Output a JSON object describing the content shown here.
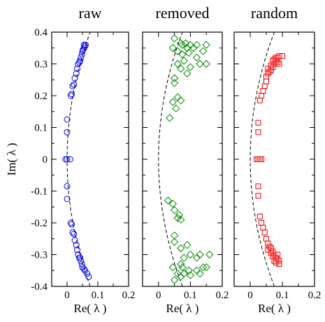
{
  "chart_data": [
    {
      "type": "scatter",
      "title": "raw",
      "xlabel": "Re( λ )",
      "ylabel": "Im( λ )",
      "xlim": [
        -0.05,
        0.2
      ],
      "ylim": [
        -0.4,
        0.4
      ],
      "xticks": [
        "0",
        "0.1",
        "0.2"
      ],
      "yticks": [
        "-0.4",
        "-0.3",
        "-0.2",
        "-0.1",
        "0",
        "0.1",
        "0.2",
        "0.3",
        "0.4"
      ],
      "marker": "circle",
      "color": "#0000ee",
      "reference_curve": {
        "style": "dashed",
        "color": "#000000",
        "x_at_zero": 0.0,
        "x_at_edge": 0.075
      },
      "points": [
        [
          -0.005,
          0.0
        ],
        [
          0.0,
          0.0
        ],
        [
          0.01,
          0.0
        ],
        [
          0.0,
          0.085
        ],
        [
          0.0,
          0.125
        ],
        [
          0.0,
          -0.085
        ],
        [
          0.0,
          -0.125
        ],
        [
          0.012,
          0.2
        ],
        [
          0.015,
          0.205
        ],
        [
          0.018,
          0.23
        ],
        [
          0.022,
          0.235
        ],
        [
          0.025,
          0.255
        ],
        [
          0.03,
          0.27
        ],
        [
          0.033,
          0.285
        ],
        [
          0.036,
          0.3
        ],
        [
          0.04,
          0.305
        ],
        [
          0.042,
          0.31
        ],
        [
          0.045,
          0.32
        ],
        [
          0.048,
          0.33
        ],
        [
          0.05,
          0.34
        ],
        [
          0.052,
          0.345
        ],
        [
          0.055,
          0.35
        ],
        [
          0.058,
          0.355
        ],
        [
          0.055,
          0.36
        ],
        [
          0.06,
          0.36
        ],
        [
          0.012,
          -0.2
        ],
        [
          0.015,
          -0.205
        ],
        [
          0.018,
          -0.23
        ],
        [
          0.022,
          -0.235
        ],
        [
          0.025,
          -0.255
        ],
        [
          0.03,
          -0.27
        ],
        [
          0.033,
          -0.285
        ],
        [
          0.036,
          -0.3
        ],
        [
          0.04,
          -0.31
        ],
        [
          0.042,
          -0.31
        ],
        [
          0.045,
          -0.32
        ],
        [
          0.048,
          -0.33
        ],
        [
          0.05,
          -0.34
        ],
        [
          0.055,
          -0.345
        ],
        [
          0.058,
          -0.35
        ],
        [
          0.065,
          -0.36
        ],
        [
          0.07,
          -0.37
        ]
      ]
    },
    {
      "type": "scatter",
      "title": "removed",
      "xlabel": "Re( λ )",
      "xlim": [
        -0.05,
        0.2
      ],
      "ylim": [
        -0.4,
        0.4
      ],
      "xticks": [
        "0",
        "0.1",
        "0.2"
      ],
      "marker": "diamond",
      "color": "#008800",
      "reference_curve": {
        "style": "dashed",
        "color": "#000000",
        "x_at_zero": 0.0,
        "x_at_edge": 0.075
      },
      "points": [
        [
          0.05,
          0.38
        ],
        [
          0.07,
          0.365
        ],
        [
          0.075,
          0.36
        ],
        [
          0.085,
          0.365
        ],
        [
          0.1,
          0.36
        ],
        [
          0.12,
          0.36
        ],
        [
          0.15,
          0.36
        ],
        [
          0.045,
          0.35
        ],
        [
          0.09,
          0.35
        ],
        [
          0.11,
          0.35
        ],
        [
          0.14,
          0.34
        ],
        [
          0.06,
          0.34
        ],
        [
          0.075,
          0.33
        ],
        [
          0.095,
          0.335
        ],
        [
          0.12,
          0.32
        ],
        [
          0.15,
          0.3
        ],
        [
          0.06,
          0.3
        ],
        [
          0.08,
          0.31
        ],
        [
          0.1,
          0.29
        ],
        [
          0.13,
          0.3
        ],
        [
          0.07,
          0.285
        ],
        [
          0.09,
          0.27
        ],
        [
          0.05,
          0.255
        ],
        [
          0.05,
          0.24
        ],
        [
          0.06,
          0.195
        ],
        [
          0.045,
          0.18
        ],
        [
          0.07,
          0.185
        ],
        [
          0.055,
          0.16
        ],
        [
          0.035,
          0.13
        ],
        [
          0.03,
          -0.13
        ],
        [
          0.045,
          -0.14
        ],
        [
          0.05,
          -0.16
        ],
        [
          0.065,
          -0.175
        ],
        [
          0.06,
          -0.185
        ],
        [
          0.07,
          -0.19
        ],
        [
          0.05,
          -0.24
        ],
        [
          0.05,
          -0.26
        ],
        [
          0.07,
          -0.28
        ],
        [
          0.09,
          -0.27
        ],
        [
          0.08,
          -0.31
        ],
        [
          0.1,
          -0.3
        ],
        [
          0.12,
          -0.31
        ],
        [
          0.07,
          -0.33
        ],
        [
          0.13,
          -0.3
        ],
        [
          0.16,
          -0.3
        ],
        [
          0.045,
          -0.34
        ],
        [
          0.075,
          -0.34
        ],
        [
          0.095,
          -0.35
        ],
        [
          0.12,
          -0.35
        ],
        [
          0.14,
          -0.34
        ],
        [
          0.15,
          -0.34
        ],
        [
          0.06,
          -0.36
        ],
        [
          0.08,
          -0.36
        ],
        [
          0.1,
          -0.365
        ],
        [
          0.07,
          -0.37
        ],
        [
          0.05,
          -0.38
        ],
        [
          0.13,
          -0.36
        ]
      ]
    },
    {
      "type": "scatter",
      "title": "random",
      "xlabel": "Re( λ )",
      "xlim": [
        -0.05,
        0.2
      ],
      "ylim": [
        -0.4,
        0.4
      ],
      "xticks": [
        "0",
        "0.1",
        "0.2"
      ],
      "marker": "square",
      "color": "#ee0000",
      "reference_curve": {
        "style": "dashed",
        "color": "#000000",
        "x_at_zero": 0.0,
        "x_at_edge": 0.075
      },
      "points": [
        [
          0.02,
          0.0
        ],
        [
          0.025,
          0.0
        ],
        [
          0.03,
          0.0
        ],
        [
          0.035,
          0.0
        ],
        [
          0.025,
          0.115
        ],
        [
          0.025,
          0.085
        ],
        [
          0.025,
          -0.115
        ],
        [
          0.025,
          -0.085
        ],
        [
          0.03,
          0.185
        ],
        [
          0.035,
          0.2
        ],
        [
          0.04,
          0.215
        ],
        [
          0.045,
          0.23
        ],
        [
          0.05,
          0.245
        ],
        [
          0.05,
          0.26
        ],
        [
          0.055,
          0.27
        ],
        [
          0.06,
          0.275
        ],
        [
          0.065,
          0.28
        ],
        [
          0.07,
          0.29
        ],
        [
          0.075,
          0.3
        ],
        [
          0.08,
          0.31
        ],
        [
          0.085,
          0.32
        ],
        [
          0.09,
          0.325
        ],
        [
          0.1,
          0.325
        ],
        [
          0.055,
          0.285
        ],
        [
          0.07,
          0.31
        ],
        [
          0.075,
          0.315
        ],
        [
          0.08,
          0.32
        ],
        [
          0.085,
          0.305
        ],
        [
          0.09,
          0.3
        ],
        [
          0.065,
          0.295
        ],
        [
          0.03,
          -0.18
        ],
        [
          0.035,
          -0.2
        ],
        [
          0.04,
          -0.215
        ],
        [
          0.045,
          -0.23
        ],
        [
          0.05,
          -0.25
        ],
        [
          0.055,
          -0.265
        ],
        [
          0.06,
          -0.275
        ],
        [
          0.065,
          -0.28
        ],
        [
          0.07,
          -0.29
        ],
        [
          0.075,
          -0.3
        ],
        [
          0.08,
          -0.31
        ],
        [
          0.085,
          -0.315
        ],
        [
          0.09,
          -0.32
        ],
        [
          0.08,
          -0.325
        ],
        [
          0.09,
          -0.33
        ],
        [
          0.055,
          -0.285
        ],
        [
          0.07,
          -0.305
        ],
        [
          0.085,
          -0.3
        ],
        [
          0.075,
          -0.32
        ],
        [
          0.065,
          -0.295
        ]
      ]
    }
  ]
}
